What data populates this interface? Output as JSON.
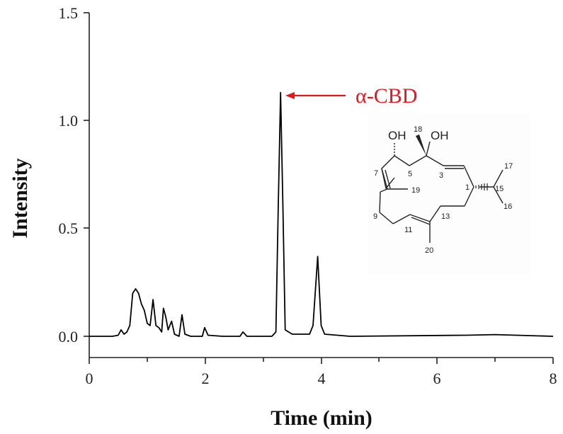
{
  "chart_data": {
    "type": "line",
    "title": "",
    "xlabel": "Time (min)",
    "ylabel": "Intensity",
    "xlim": [
      0,
      8
    ],
    "ylim": [
      -0.1,
      1.5
    ],
    "grid": false,
    "legend": null,
    "x_ticks": [
      "0",
      "2",
      "4",
      "6",
      "8"
    ],
    "x_minor_ticks": [
      1,
      3,
      5,
      7
    ],
    "y_ticks": [
      "0.0",
      "0.5",
      "1.0",
      "1.5"
    ],
    "series": [
      {
        "name": "chromatogram",
        "color": "#000000",
        "points": [
          [
            0.0,
            0.0
          ],
          [
            0.4,
            0.0
          ],
          [
            0.5,
            0.005
          ],
          [
            0.55,
            0.03
          ],
          [
            0.6,
            0.01
          ],
          [
            0.65,
            0.02
          ],
          [
            0.7,
            0.05
          ],
          [
            0.75,
            0.2
          ],
          [
            0.8,
            0.22
          ],
          [
            0.85,
            0.2
          ],
          [
            0.9,
            0.15
          ],
          [
            0.95,
            0.12
          ],
          [
            1.0,
            0.06
          ],
          [
            1.05,
            0.05
          ],
          [
            1.1,
            0.17
          ],
          [
            1.15,
            0.05
          ],
          [
            1.2,
            0.04
          ],
          [
            1.25,
            0.02
          ],
          [
            1.28,
            0.13
          ],
          [
            1.32,
            0.09
          ],
          [
            1.36,
            0.03
          ],
          [
            1.42,
            0.07
          ],
          [
            1.47,
            0.01
          ],
          [
            1.55,
            0.0
          ],
          [
            1.6,
            0.1
          ],
          [
            1.65,
            0.01
          ],
          [
            1.75,
            0.0
          ],
          [
            1.95,
            0.0
          ],
          [
            1.99,
            0.04
          ],
          [
            2.05,
            0.005
          ],
          [
            2.3,
            0.0
          ],
          [
            2.6,
            0.0
          ],
          [
            2.65,
            0.02
          ],
          [
            2.72,
            0.0
          ],
          [
            3.15,
            0.0
          ],
          [
            3.22,
            0.02
          ],
          [
            3.26,
            0.6
          ],
          [
            3.3,
            1.13
          ],
          [
            3.34,
            0.6
          ],
          [
            3.38,
            0.03
          ],
          [
            3.5,
            0.01
          ],
          [
            3.8,
            0.01
          ],
          [
            3.86,
            0.05
          ],
          [
            3.94,
            0.37
          ],
          [
            4.0,
            0.05
          ],
          [
            4.06,
            0.01
          ],
          [
            4.5,
            0.0
          ],
          [
            6.5,
            0.005
          ],
          [
            7.0,
            0.008
          ],
          [
            8.0,
            0.0
          ]
        ]
      }
    ],
    "peaks": [
      {
        "time": 3.3,
        "intensity": 1.13,
        "label": "α-CBD"
      },
      {
        "time": 3.94,
        "intensity": 0.37,
        "label": ""
      }
    ],
    "annotations": [
      {
        "text": "α-CBD",
        "color": "#e8161b",
        "arrow_to": [
          3.32,
          1.13
        ]
      }
    ]
  },
  "axes": {
    "xlabel": "Time (min)",
    "ylabel": "Intensity",
    "x_ticks": [
      "0",
      "2",
      "4",
      "6",
      "8"
    ],
    "y_ticks": [
      "1.5",
      "1.0",
      "0.5",
      "0.0"
    ]
  },
  "annotation": {
    "label": "α-CBD",
    "color": "#e8161b"
  },
  "structure": {
    "oh_left": "OH",
    "oh_right": "OH",
    "atom_labels": [
      "18",
      "7",
      "5",
      "3",
      "17",
      "1",
      "15",
      "19",
      "16",
      "9",
      "13",
      "11",
      "20"
    ]
  }
}
